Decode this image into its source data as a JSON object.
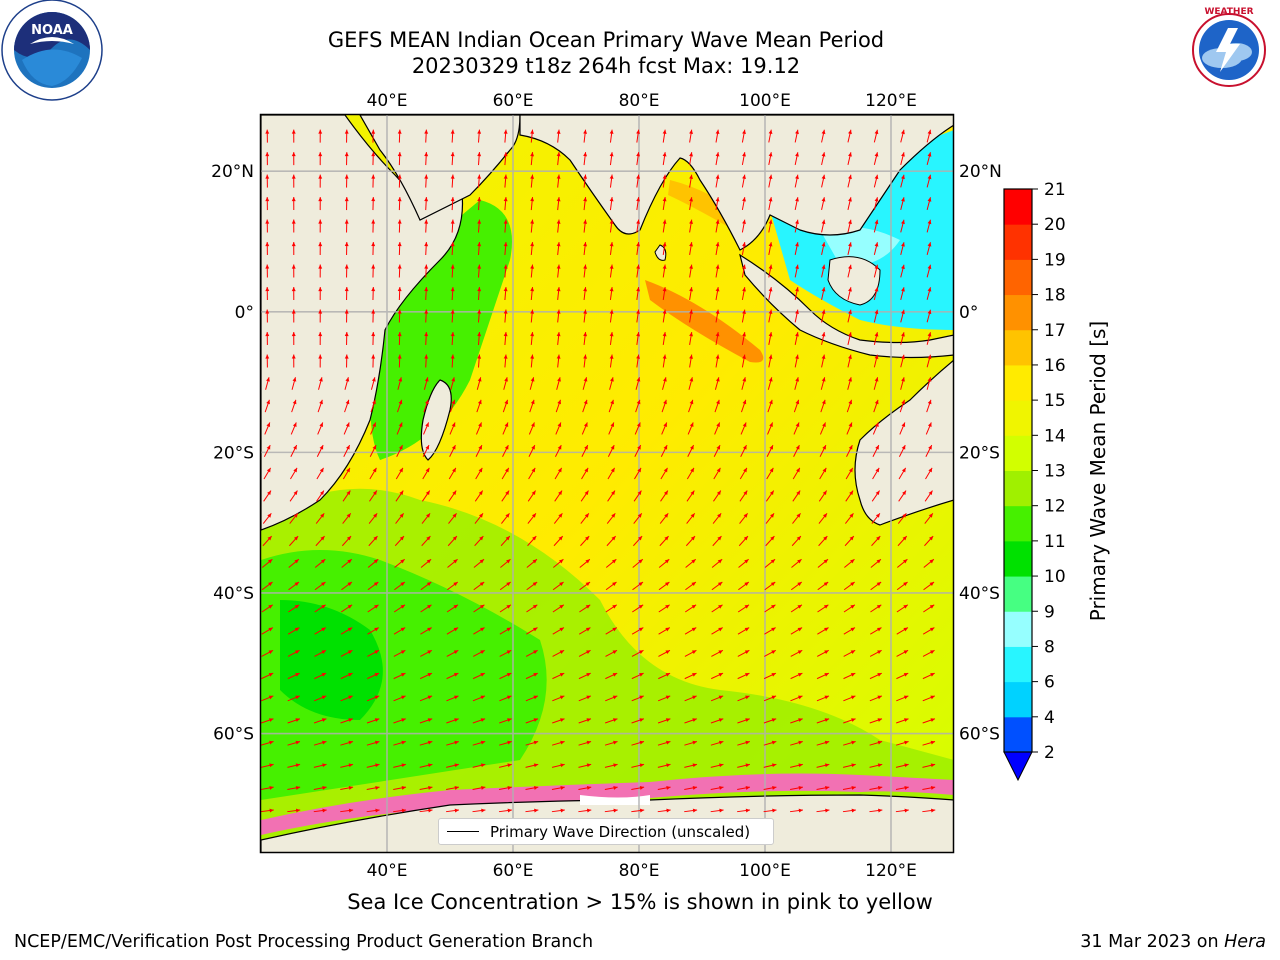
{
  "title": {
    "line1": "GEFS MEAN Indian Ocean Primary Wave Mean Period",
    "line2": "20230329 t18z 264h fcst   Max: 19.12"
  },
  "logos": {
    "noaa_icon": "noaa-logo-icon",
    "nws_icon": "nws-logo-icon"
  },
  "map": {
    "lon_ticks": [
      "40°E",
      "60°E",
      "80°E",
      "100°E",
      "120°E"
    ],
    "lat_ticks": [
      "20°N",
      "0°",
      "20°S",
      "40°S",
      "60°S"
    ],
    "lon_values": [
      40,
      60,
      80,
      100,
      120
    ],
    "lat_values": [
      20,
      0,
      -20,
      -40,
      -60
    ],
    "extent": {
      "lon_min": 20,
      "lon_max": 130,
      "lat_min": -77,
      "lat_max": 28
    },
    "land_color": "#efecdc",
    "arrow_color": "#ff0000",
    "gridlines": true
  },
  "colorbar": {
    "label": "Primary Wave Mean Period [s]",
    "ticks": [
      "2",
      "4",
      "6",
      "8",
      "9",
      "10",
      "11",
      "12",
      "13",
      "14",
      "15",
      "16",
      "17",
      "18",
      "19",
      "20",
      "21"
    ],
    "colors": [
      "#0050ff",
      "#00d2ff",
      "#28f5ff",
      "#96ffff",
      "#46ff82",
      "#00e100",
      "#46f000",
      "#a0f000",
      "#d2ff00",
      "#f0f500",
      "#ffeb00",
      "#ffc300",
      "#ff9100",
      "#ff6400",
      "#ff3200",
      "#ff0000"
    ],
    "under_color": "#0000ff"
  },
  "legend": {
    "label": "Primary Wave Direction (unscaled)"
  },
  "notes": {
    "sea_ice": "Sea Ice Concentration > 15% is shown in pink to yellow"
  },
  "footer": {
    "left": "NCEP/EMC/Verification Post Processing Product Generation Branch",
    "date": "31 Mar 2023 on",
    "host": "Hera"
  }
}
